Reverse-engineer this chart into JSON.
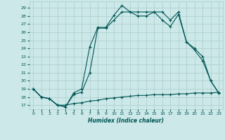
{
  "xlabel": "Humidex (Indice chaleur)",
  "background_color": "#cce8e8",
  "grid_color": "#aacccc",
  "line_color": "#005555",
  "xlim": [
    -0.5,
    23.5
  ],
  "ylim": [
    16.5,
    29.8
  ],
  "xticks": [
    0,
    1,
    2,
    3,
    4,
    5,
    6,
    7,
    8,
    9,
    10,
    11,
    12,
    13,
    14,
    15,
    16,
    17,
    18,
    19,
    20,
    21,
    22,
    23
  ],
  "yticks": [
    17,
    18,
    19,
    20,
    21,
    22,
    23,
    24,
    25,
    26,
    27,
    28,
    29
  ],
  "line1_x": [
    0,
    1,
    2,
    3,
    4,
    5,
    6,
    7,
    8,
    9,
    10,
    11,
    12,
    13,
    14,
    15,
    16,
    17,
    18,
    19,
    20,
    21,
    22,
    23
  ],
  "line1_y": [
    19.0,
    18.0,
    17.8,
    17.0,
    16.8,
    18.5,
    19.0,
    24.2,
    26.6,
    26.6,
    28.1,
    29.3,
    28.5,
    28.5,
    28.5,
    28.5,
    28.5,
    27.5,
    28.5,
    24.8,
    24.0,
    23.0,
    20.0,
    18.5
  ],
  "line2_x": [
    0,
    1,
    2,
    3,
    4,
    5,
    6,
    7,
    8,
    9,
    10,
    11,
    12,
    13,
    14,
    15,
    16,
    17,
    18,
    19,
    20,
    21,
    22,
    23
  ],
  "line2_y": [
    19.0,
    18.0,
    17.8,
    17.0,
    16.8,
    18.3,
    18.6,
    21.0,
    26.5,
    26.5,
    27.5,
    28.5,
    28.5,
    28.0,
    28.0,
    28.5,
    27.5,
    26.7,
    28.2,
    24.8,
    23.8,
    22.5,
    20.0,
    18.5
  ],
  "line3_x": [
    0,
    1,
    2,
    3,
    4,
    5,
    6,
    7,
    8,
    9,
    10,
    11,
    12,
    13,
    14,
    15,
    16,
    17,
    18,
    19,
    20,
    21,
    22,
    23
  ],
  "line3_y": [
    19.0,
    18.0,
    17.8,
    17.0,
    17.0,
    17.2,
    17.3,
    17.5,
    17.6,
    17.8,
    17.9,
    18.0,
    18.1,
    18.2,
    18.2,
    18.3,
    18.3,
    18.3,
    18.4,
    18.4,
    18.5,
    18.5,
    18.5,
    18.6
  ]
}
